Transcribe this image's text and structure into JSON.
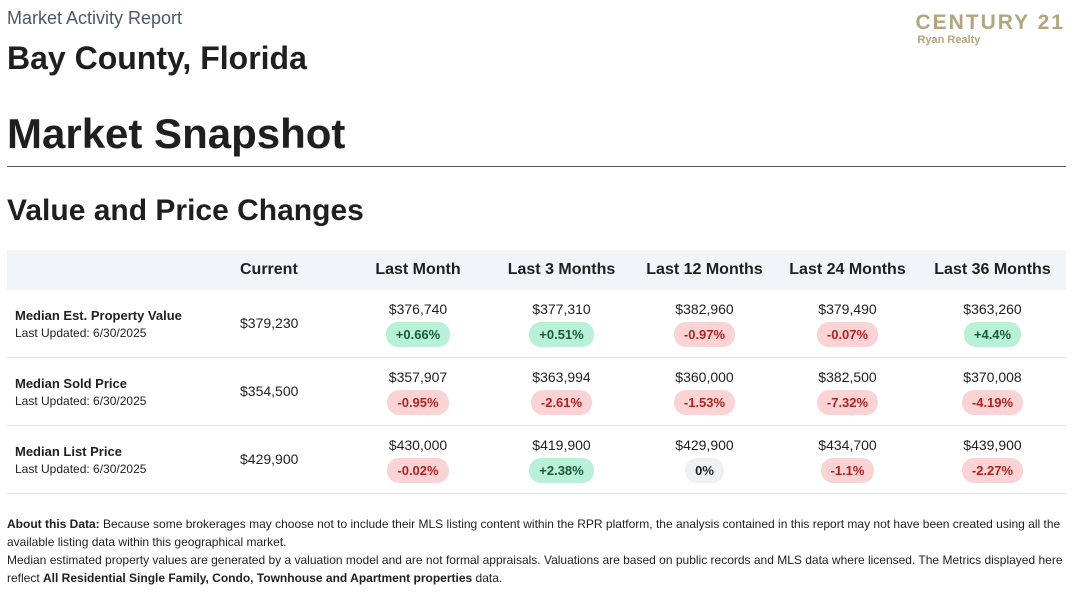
{
  "header": {
    "report_label": "Market Activity Report",
    "county": "Bay County, Florida",
    "logo_main": "CENTURY 21",
    "logo_sub": "Ryan Realty"
  },
  "snapshot_title": "Market Snapshot",
  "section_title": "Value and Price Changes",
  "table": {
    "columns": [
      "",
      "Current",
      "Last Month",
      "Last 3 Months",
      "Last 12 Months",
      "Last 24 Months",
      "Last 36 Months"
    ],
    "rows": [
      {
        "name": "Median Est. Property Value",
        "updated": "Last Updated: 6/30/2025",
        "current": "$379,230",
        "periods": [
          {
            "value": "$376,740",
            "change": "+0.66%",
            "trend": "up"
          },
          {
            "value": "$377,310",
            "change": "+0.51%",
            "trend": "up"
          },
          {
            "value": "$382,960",
            "change": "-0.97%",
            "trend": "down"
          },
          {
            "value": "$379,490",
            "change": "-0.07%",
            "trend": "down"
          },
          {
            "value": "$363,260",
            "change": "+4.4%",
            "trend": "up"
          }
        ]
      },
      {
        "name": "Median Sold Price",
        "updated": "Last Updated: 6/30/2025",
        "current": "$354,500",
        "periods": [
          {
            "value": "$357,907",
            "change": "-0.95%",
            "trend": "down"
          },
          {
            "value": "$363,994",
            "change": "-2.61%",
            "trend": "down"
          },
          {
            "value": "$360,000",
            "change": "-1.53%",
            "trend": "down"
          },
          {
            "value": "$382,500",
            "change": "-7.32%",
            "trend": "down"
          },
          {
            "value": "$370,008",
            "change": "-4.19%",
            "trend": "down"
          }
        ]
      },
      {
        "name": "Median List Price",
        "updated": "Last Updated: 6/30/2025",
        "current": "$429,900",
        "periods": [
          {
            "value": "$430,000",
            "change": "-0.02%",
            "trend": "down"
          },
          {
            "value": "$419,900",
            "change": "+2.38%",
            "trend": "up"
          },
          {
            "value": "$429,900",
            "change": "0%",
            "trend": "flat"
          },
          {
            "value": "$434,700",
            "change": "-1.1%",
            "trend": "down"
          },
          {
            "value": "$439,900",
            "change": "-2.27%",
            "trend": "down"
          }
        ]
      }
    ]
  },
  "about": {
    "label": "About this Data:",
    "text1": " Because some brokerages may choose not to include their MLS listing content within the RPR platform, the analysis contained in this report may not have been created using all the available listing data within this geographical market.",
    "text2_a": "Median estimated property values are generated by a valuation model and are not formal appraisals. Valuations are based on public records and MLS data where licensed. The Metrics displayed here reflect ",
    "text2_bold": "All Residential Single Family, Condo, Townhouse and Apartment properties",
    "text2_b": " data."
  },
  "colors": {
    "up_bg": "#b8f0d8",
    "down_bg": "#fad4d4",
    "flat_bg": "#eef0f3",
    "logo_gold": "#b5a57f",
    "header_bg": "#f2f4f7"
  }
}
